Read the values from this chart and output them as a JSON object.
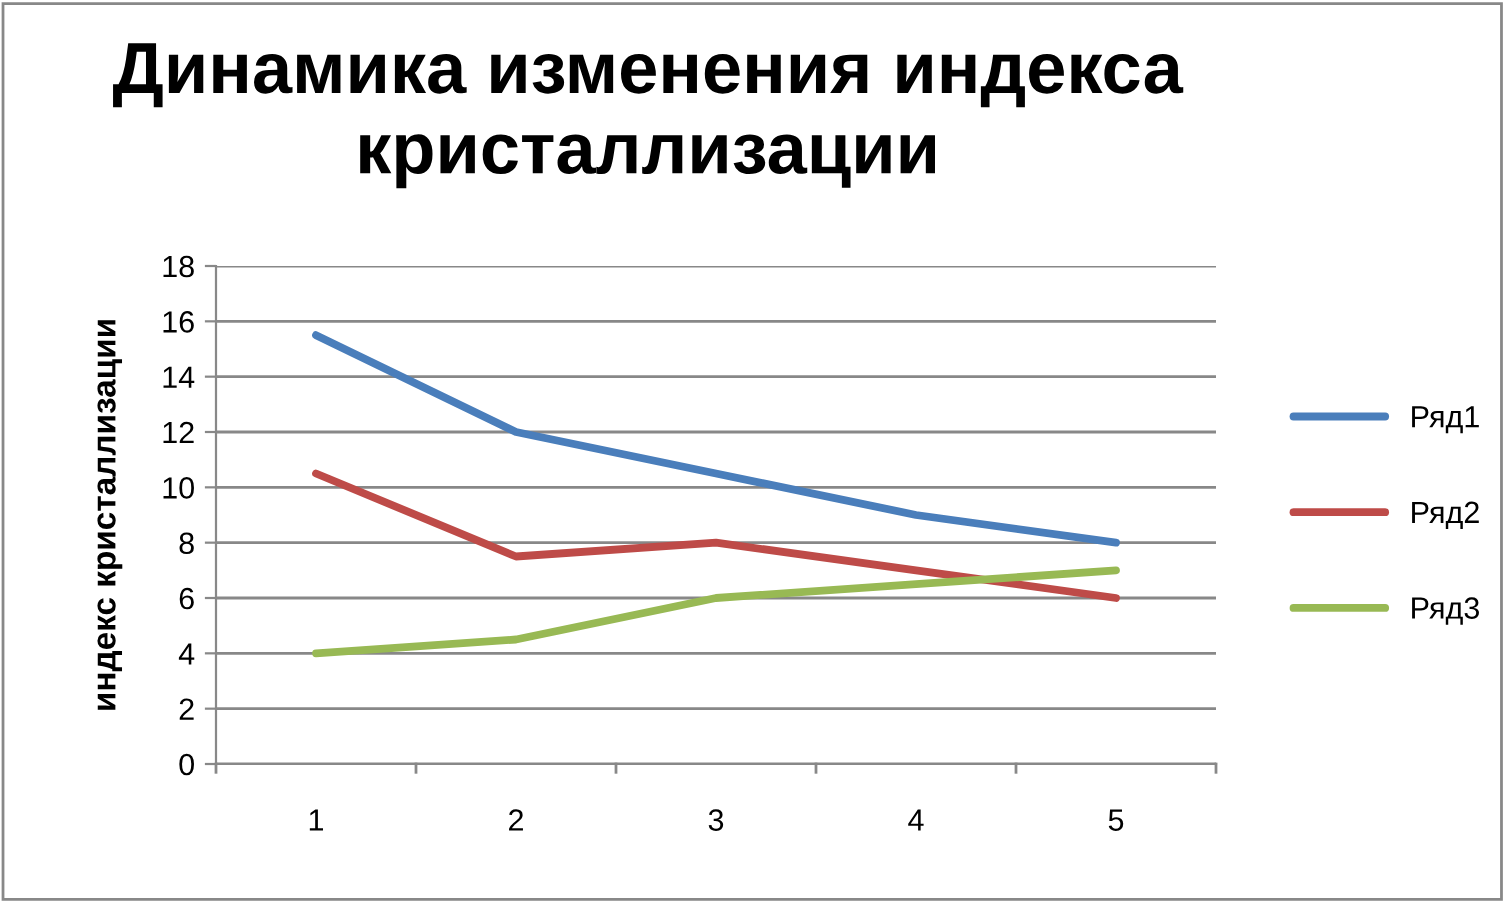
{
  "chart_data": {
    "type": "line",
    "title": "Динамика изменения индекса кристаллизации",
    "ylabel": "индекс кристаллизации",
    "categories": [
      "1",
      "2",
      "3",
      "4",
      "5"
    ],
    "series": [
      {
        "name": "Ряд1",
        "color": "#4a7ebb",
        "values": [
          15.5,
          12,
          10.5,
          9,
          8
        ]
      },
      {
        "name": "Ряд2",
        "color": "#be4b48",
        "values": [
          10.5,
          7.5,
          8,
          7,
          6
        ]
      },
      {
        "name": "Ряд3",
        "color": "#98b954",
        "values": [
          4,
          4.5,
          6,
          6.5,
          7
        ]
      }
    ],
    "ylim": [
      0,
      18
    ],
    "yticks": [
      0,
      2,
      4,
      6,
      8,
      10,
      12,
      14,
      16,
      18
    ],
    "grid": "y",
    "legend": "right",
    "marker": "none",
    "line_style": "solid"
  }
}
